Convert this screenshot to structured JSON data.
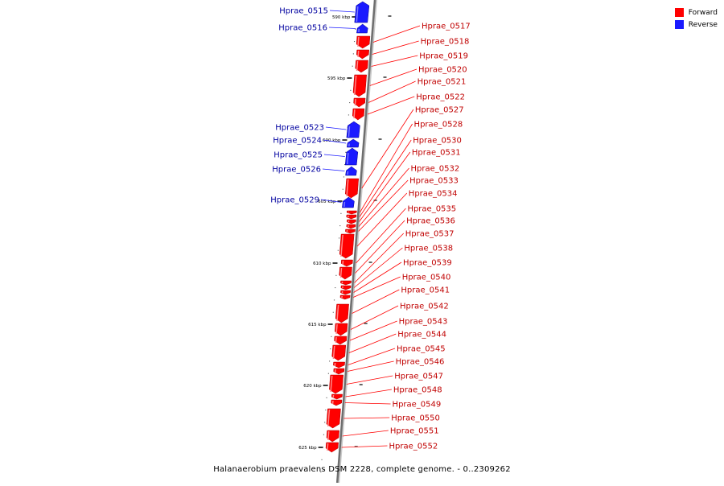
{
  "legend": {
    "forward_label": "Forward",
    "reverse_label": "Reverse",
    "forward_color": "#ff0000",
    "reverse_color": "#1a1aff"
  },
  "caption": "Halanaerobium praevalens DSM 2228, complete genome. - 0..2309262",
  "scale_labels": [
    "590 kbp",
    "595 kbp",
    "600 kbp",
    "605 kbp",
    "610 kbp",
    "615 kbp",
    "620 kbp",
    "625 kbp"
  ],
  "genes": [
    {
      "name": "Hprae_0515",
      "strand": "reverse"
    },
    {
      "name": "Hprae_0516",
      "strand": "reverse"
    },
    {
      "name": "Hprae_0517",
      "strand": "forward"
    },
    {
      "name": "Hprae_0518",
      "strand": "forward"
    },
    {
      "name": "Hprae_0519",
      "strand": "forward"
    },
    {
      "name": "Hprae_0520",
      "strand": "forward"
    },
    {
      "name": "Hprae_0521",
      "strand": "forward"
    },
    {
      "name": "Hprae_0522",
      "strand": "forward"
    },
    {
      "name": "Hprae_0523",
      "strand": "reverse"
    },
    {
      "name": "Hprae_0524",
      "strand": "reverse"
    },
    {
      "name": "Hprae_0525",
      "strand": "reverse"
    },
    {
      "name": "Hprae_0526",
      "strand": "reverse"
    },
    {
      "name": "Hprae_0527",
      "strand": "forward"
    },
    {
      "name": "Hprae_0528",
      "strand": "forward"
    },
    {
      "name": "Hprae_0529",
      "strand": "reverse"
    },
    {
      "name": "Hprae_0530",
      "strand": "forward"
    },
    {
      "name": "Hprae_0531",
      "strand": "forward"
    },
    {
      "name": "Hprae_0532",
      "strand": "forward"
    },
    {
      "name": "Hprae_0533",
      "strand": "forward"
    },
    {
      "name": "Hprae_0534",
      "strand": "forward"
    },
    {
      "name": "Hprae_0535",
      "strand": "forward"
    },
    {
      "name": "Hprae_0536",
      "strand": "forward"
    },
    {
      "name": "Hprae_0537",
      "strand": "forward"
    },
    {
      "name": "Hprae_0538",
      "strand": "forward"
    },
    {
      "name": "Hprae_0539",
      "strand": "forward"
    },
    {
      "name": "Hprae_0540",
      "strand": "forward"
    },
    {
      "name": "Hprae_0541",
      "strand": "forward"
    },
    {
      "name": "Hprae_0542",
      "strand": "forward"
    },
    {
      "name": "Hprae_0543",
      "strand": "forward"
    },
    {
      "name": "Hprae_0544",
      "strand": "forward"
    },
    {
      "name": "Hprae_0545",
      "strand": "forward"
    },
    {
      "name": "Hprae_0546",
      "strand": "forward"
    },
    {
      "name": "Hprae_0547",
      "strand": "forward"
    },
    {
      "name": "Hprae_0548",
      "strand": "forward"
    },
    {
      "name": "Hprae_0549",
      "strand": "forward"
    },
    {
      "name": "Hprae_0550",
      "strand": "forward"
    },
    {
      "name": "Hprae_0551",
      "strand": "forward"
    },
    {
      "name": "Hprae_0552",
      "strand": "forward"
    }
  ]
}
